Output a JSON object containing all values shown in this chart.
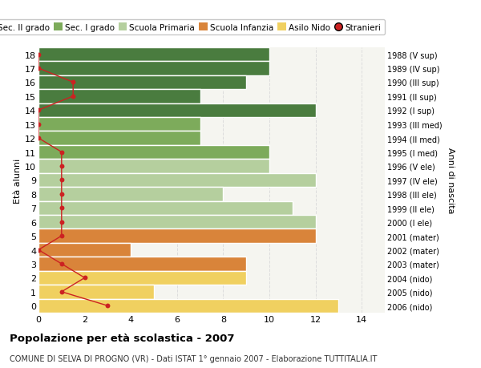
{
  "ages": [
    18,
    17,
    16,
    15,
    14,
    13,
    12,
    11,
    10,
    9,
    8,
    7,
    6,
    5,
    4,
    3,
    2,
    1,
    0
  ],
  "years": [
    "1988 (V sup)",
    "1989 (IV sup)",
    "1990 (III sup)",
    "1991 (II sup)",
    "1992 (I sup)",
    "1993 (III med)",
    "1994 (II med)",
    "1995 (I med)",
    "1996 (V ele)",
    "1997 (IV ele)",
    "1998 (III ele)",
    "1999 (II ele)",
    "2000 (I ele)",
    "2001 (mater)",
    "2002 (mater)",
    "2003 (mater)",
    "2004 (nido)",
    "2005 (nido)",
    "2006 (nido)"
  ],
  "bar_values": [
    10,
    10,
    9,
    7,
    12,
    7,
    7,
    10,
    10,
    12,
    8,
    11,
    12,
    12,
    4,
    9,
    9,
    5,
    13
  ],
  "bar_colors": [
    "#4a7c3f",
    "#4a7c3f",
    "#4a7c3f",
    "#4a7c3f",
    "#4a7c3f",
    "#7dab5b",
    "#7dab5b",
    "#7dab5b",
    "#b5cf9e",
    "#b5cf9e",
    "#b5cf9e",
    "#b5cf9e",
    "#b5cf9e",
    "#d9843a",
    "#d9843a",
    "#d9843a",
    "#f0d060",
    "#f0d060",
    "#f0d060"
  ],
  "stranieri_values": [
    0,
    0,
    1.5,
    1.5,
    0,
    0,
    0,
    1,
    1,
    1,
    1,
    1,
    1,
    1,
    0,
    1,
    2,
    1,
    3
  ],
  "legend_labels": [
    "Sec. II grado",
    "Sec. I grado",
    "Scuola Primaria",
    "Scuola Infanzia",
    "Asilo Nido",
    "Stranieri"
  ],
  "legend_colors": [
    "#4a7c3f",
    "#7dab5b",
    "#b5cf9e",
    "#d9843a",
    "#f0d060",
    "#cc2222"
  ],
  "xlabel_values": [
    0,
    2,
    4,
    6,
    8,
    10,
    12,
    14
  ],
  "xlim": [
    0,
    15
  ],
  "title": "Popolazione per età scolastica - 2007",
  "subtitle": "COMUNE DI SELVA DI PROGNO (VR) - Dati ISTAT 1° gennaio 2007 - Elaborazione TUTTITALIA.IT",
  "ylabel_left": "Età alunni",
  "ylabel_right": "Anni di nascita",
  "bg_color": "#ffffff",
  "bar_edge_color": "#ffffff",
  "plot_bg_color": "#f5f5f0",
  "stranieri_color": "#cc2222",
  "grid_color": "#dddddd"
}
